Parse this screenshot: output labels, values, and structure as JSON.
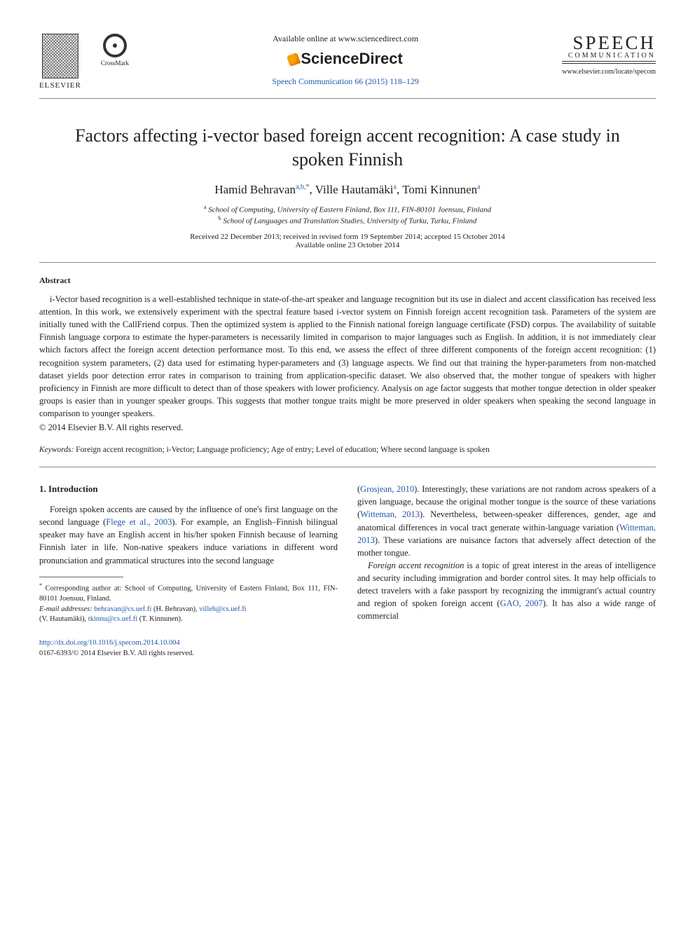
{
  "header": {
    "elsevier_label": "ELSEVIER",
    "crossmark_label": "CrossMark",
    "available_line": "Available online at www.sciencedirect.com",
    "sciencedirect": "ScienceDirect",
    "journal_ref": "Speech Communication 66 (2015) 118–129",
    "speech_logo_top": "SPEECH",
    "speech_logo_bottom": "COMMUNICATION",
    "locate_url": "www.elsevier.com/locate/specom"
  },
  "title": "Factors affecting i-vector based foreign accent recognition: A case study in spoken Finnish",
  "authors": {
    "a1_name": "Hamid Behravan",
    "a1_sup": "a,b,*",
    "a2_name": "Ville Hautamäki",
    "a2_sup": "a",
    "a3_name": "Tomi Kinnunen",
    "a3_sup": "a"
  },
  "affiliations": {
    "a_sup": "a",
    "a_text": "School of Computing, University of Eastern Finland, Box 111, FIN-80101 Joensuu, Finland",
    "b_sup": "b",
    "b_text": "School of Languages and Translation Studies, University of Turku, Turku, Finland"
  },
  "dates": {
    "line1": "Received 22 December 2013; received in revised form 19 September 2014; accepted 15 October 2014",
    "line2": "Available online 23 October 2014"
  },
  "abstract": {
    "heading": "Abstract",
    "body": "i-Vector based recognition is a well-established technique in state-of-the-art speaker and language recognition but its use in dialect and accent classification has received less attention. In this work, we extensively experiment with the spectral feature based i-vector system on Finnish foreign accent recognition task. Parameters of the system are initially tuned with the CallFriend corpus. Then the optimized system is applied to the Finnish national foreign language certificate (FSD) corpus. The availability of suitable Finnish language corpora to estimate the hyper-parameters is necessarily limited in comparison to major languages such as English. In addition, it is not immediately clear which factors affect the foreign accent detection performance most. To this end, we assess the effect of three different components of the foreign accent recognition: (1) recognition system parameters, (2) data used for estimating hyper-parameters and (3) language aspects. We find out that training the hyper-parameters from non-matched dataset yields poor detection error rates in comparison to training from application-specific dataset. We also observed that, the mother tongue of speakers with higher proficiency in Finnish are more difficult to detect than of those speakers with lower proficiency. Analysis on age factor suggests that mother tongue detection in older speaker groups is easier than in younger speaker groups. This suggests that mother tongue traits might be more preserved in older speakers when speaking the second language in comparison to younger speakers.",
    "copyright": "© 2014 Elsevier B.V. All rights reserved."
  },
  "keywords": {
    "label": "Keywords:",
    "text": " Foreign accent recognition; i-Vector; Language proficiency; Age of entry; Level of education; Where second language is spoken"
  },
  "section1": {
    "heading": "1. Introduction",
    "col1_para1_a": "Foreign spoken accents are caused by the influence of one's first language on the second language (",
    "col1_cite1": "Flege et al., 2003",
    "col1_para1_b": "). For example, an English–Finnish bilingual speaker may have an English accent in his/her spoken Finnish because of learning Finnish later in life. Non-native speakers induce variations in different word pronunciation and grammatical structures into the second language",
    "col2_para1_a": "(",
    "col2_cite1": "Grosjean, 2010",
    "col2_para1_b": "). Interestingly, these variations are not random across speakers of a given language, because the original mother tongue is the source of these variations (",
    "col2_cite2": "Witteman, 2013",
    "col2_para1_c": "). Nevertheless, between-speaker differences, gender, age and anatomical differences in vocal tract generate within-language variation (",
    "col2_cite3": "Witteman, 2013",
    "col2_para1_d": "). These variations are nuisance factors that adversely affect detection of the mother tongue.",
    "col2_para2_a": "Foreign accent recognition",
    "col2_para2_b": " is a topic of great interest in the areas of intelligence and security including immigration and border control sites. It may help officials to detect travelers with a fake passport by recognizing the immigrant's actual country and region of spoken foreign accent (",
    "col2_cite4": "GAO, 2007",
    "col2_para2_c": "). It has also a wide range of commercial"
  },
  "footnote": {
    "corr_sup": "*",
    "corr_text": " Corresponding author at: School of Computing, University of Eastern Finland, Box 111, FIN-80101 Joensuu, Finland.",
    "email_label": "E-mail addresses:",
    "e1": "behravan@cs.uef.fi",
    "e1_who": " (H. Behravan), ",
    "e2": "villeh@cs.uef.fi",
    "e2_who": " (V. Hautamäki), ",
    "e3": "tkinnu@cs.uef.fi",
    "e3_who": " (T. Kinnunen)."
  },
  "doi": {
    "url": "http://dx.doi.org/10.1016/j.specom.2014.10.004",
    "issn_line": "0167-6393/© 2014 Elsevier B.V. All rights reserved."
  }
}
